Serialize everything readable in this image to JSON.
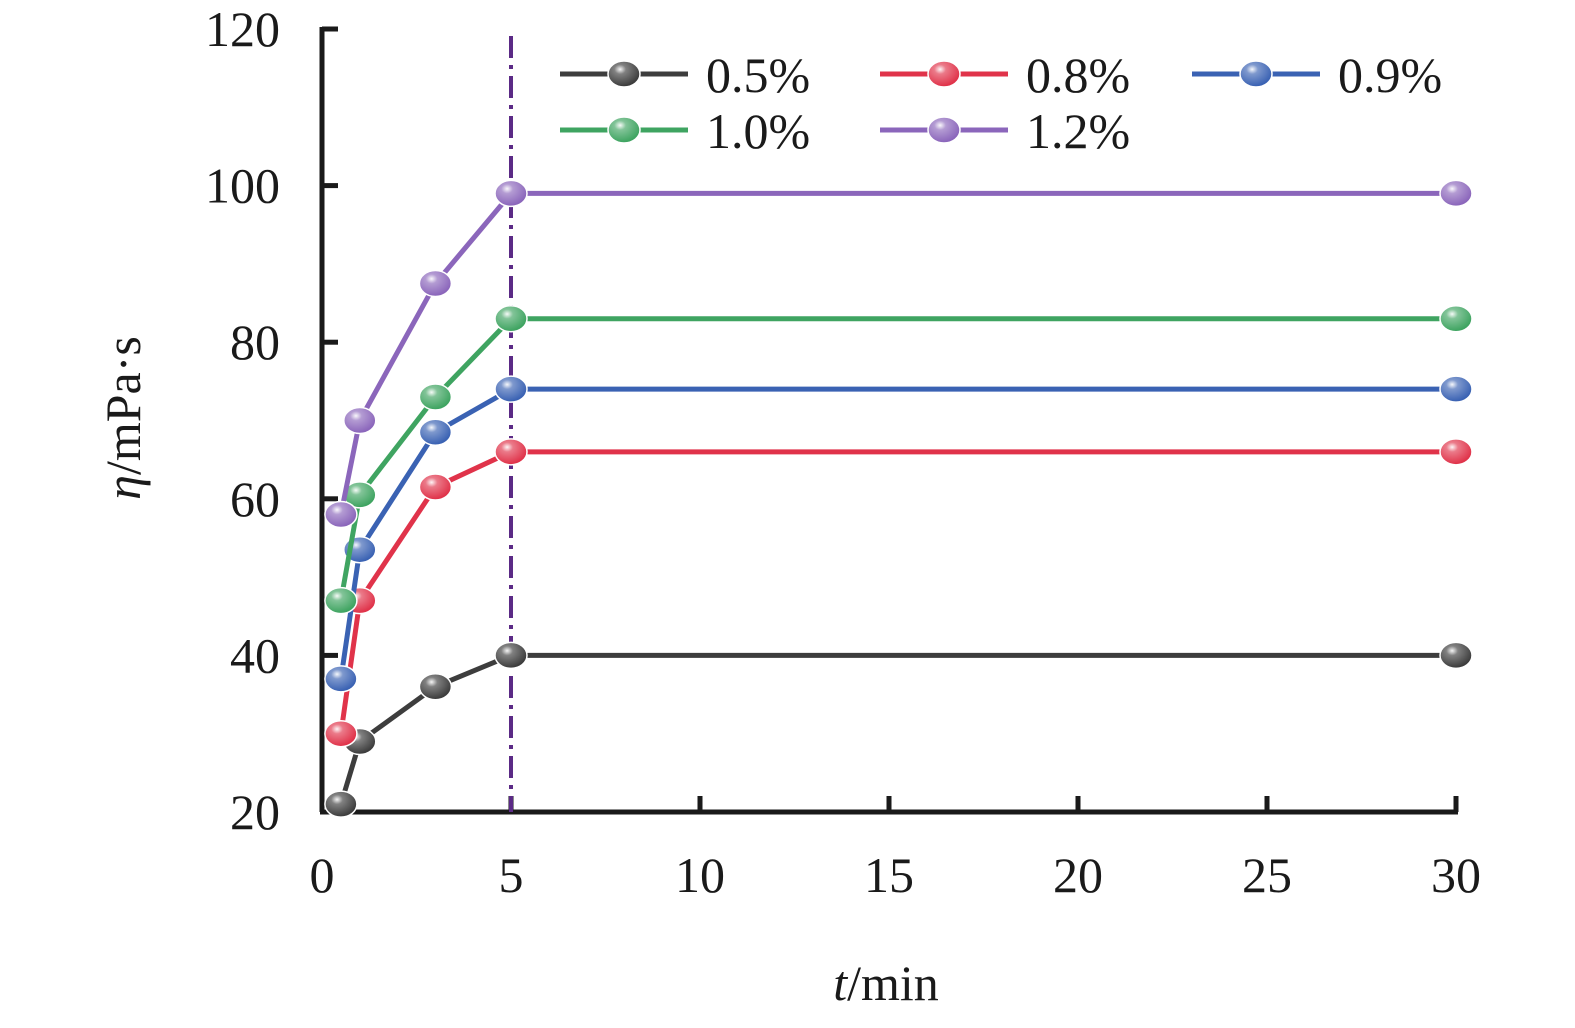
{
  "chart_data": {
    "type": "line",
    "x": [
      0.5,
      1,
      3,
      5,
      30
    ],
    "series": [
      {
        "name": "0.5%",
        "color": "#3d3d3d",
        "values": [
          21,
          29,
          36,
          40,
          40
        ]
      },
      {
        "name": "0.8%",
        "color": "#e0334a",
        "values": [
          30,
          47,
          61.5,
          66,
          66
        ]
      },
      {
        "name": "0.9%",
        "color": "#3a62b3",
        "values": [
          37,
          53.5,
          68.5,
          74,
          74
        ]
      },
      {
        "name": "1.0%",
        "color": "#3fa461",
        "values": [
          47,
          60.5,
          73,
          83,
          83
        ]
      },
      {
        "name": "1.2%",
        "color": "#8b66bb",
        "values": [
          58,
          70,
          87.5,
          99,
          99
        ]
      }
    ],
    "xlabel": {
      "italic": "t",
      "rest": "/min"
    },
    "ylabel": {
      "italic": "η",
      "rest": "/mPa·s"
    },
    "xlim": [
      0,
      30
    ],
    "ylim": [
      20,
      120
    ],
    "xticks": [
      0,
      5,
      10,
      15,
      20,
      25,
      30
    ],
    "yticks": [
      20,
      40,
      60,
      80,
      100,
      120
    ],
    "reference_line": {
      "x": 5,
      "style": "dash-dot",
      "color": "#5b2a86"
    },
    "legend_position": "top-right",
    "grid": false
  }
}
